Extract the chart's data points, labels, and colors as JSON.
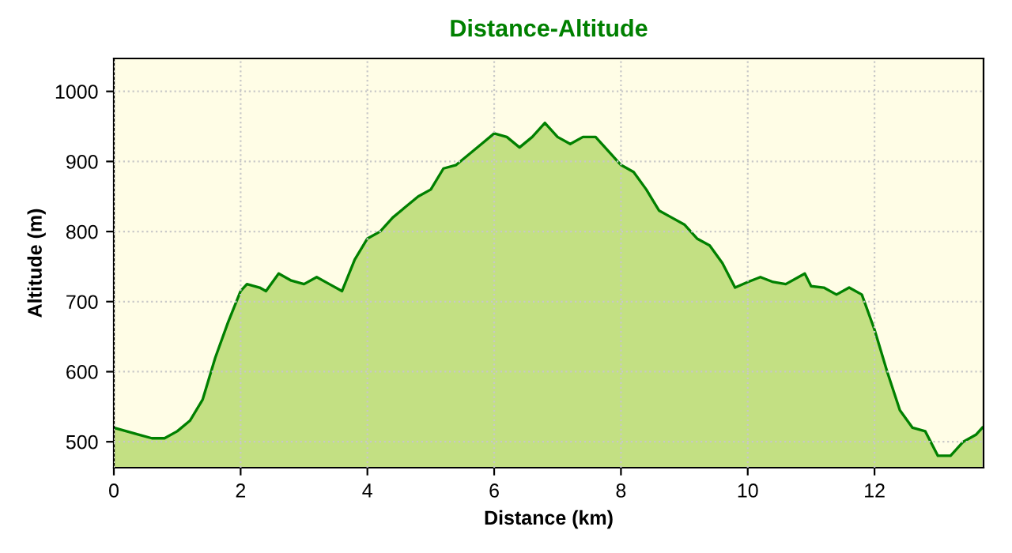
{
  "chart_data": {
    "type": "area",
    "title": "Distance-Altitude",
    "xlabel": "Distance (km)",
    "ylabel": "Altitude (m)",
    "xlim": [
      0,
      13.72
    ],
    "ylim": [
      463,
      1047
    ],
    "xticks": [
      0,
      2,
      4,
      6,
      8,
      10,
      12
    ],
    "yticks": [
      500,
      600,
      700,
      800,
      900,
      1000
    ],
    "grid": true,
    "series": [
      {
        "color": "#008000",
        "x": [
          0,
          0.2,
          0.4,
          0.6,
          0.8,
          1.0,
          1.2,
          1.4,
          1.6,
          1.8,
          2.0,
          2.1,
          2.3,
          2.4,
          2.6,
          2.8,
          3.0,
          3.2,
          3.4,
          3.6,
          3.8,
          4.0,
          4.2,
          4.4,
          4.6,
          4.8,
          5.0,
          5.2,
          5.4,
          5.6,
          5.8,
          6.0,
          6.2,
          6.4,
          6.6,
          6.8,
          7.0,
          7.2,
          7.4,
          7.6,
          7.8,
          8.0,
          8.2,
          8.4,
          8.6,
          8.8,
          9.0,
          9.2,
          9.4,
          9.6,
          9.8,
          10.0,
          10.2,
          10.4,
          10.6,
          10.8,
          10.9,
          11.0,
          11.2,
          11.4,
          11.6,
          11.8,
          12.0,
          12.2,
          12.4,
          12.6,
          12.8,
          13.0,
          13.2,
          13.4,
          13.6,
          13.7
        ],
        "values": [
          520,
          515,
          510,
          505,
          505,
          515,
          530,
          560,
          620,
          670,
          715,
          725,
          720,
          715,
          740,
          730,
          725,
          735,
          725,
          715,
          760,
          790,
          800,
          820,
          835,
          850,
          860,
          890,
          895,
          910,
          925,
          940,
          935,
          920,
          935,
          955,
          935,
          925,
          935,
          935,
          915,
          895,
          885,
          860,
          830,
          820,
          810,
          790,
          780,
          755,
          720,
          728,
          735,
          728,
          725,
          735,
          740,
          722,
          720,
          710,
          720,
          710,
          660,
          600,
          545,
          520,
          515,
          480,
          480,
          500,
          510,
          520
        ]
      }
    ]
  }
}
